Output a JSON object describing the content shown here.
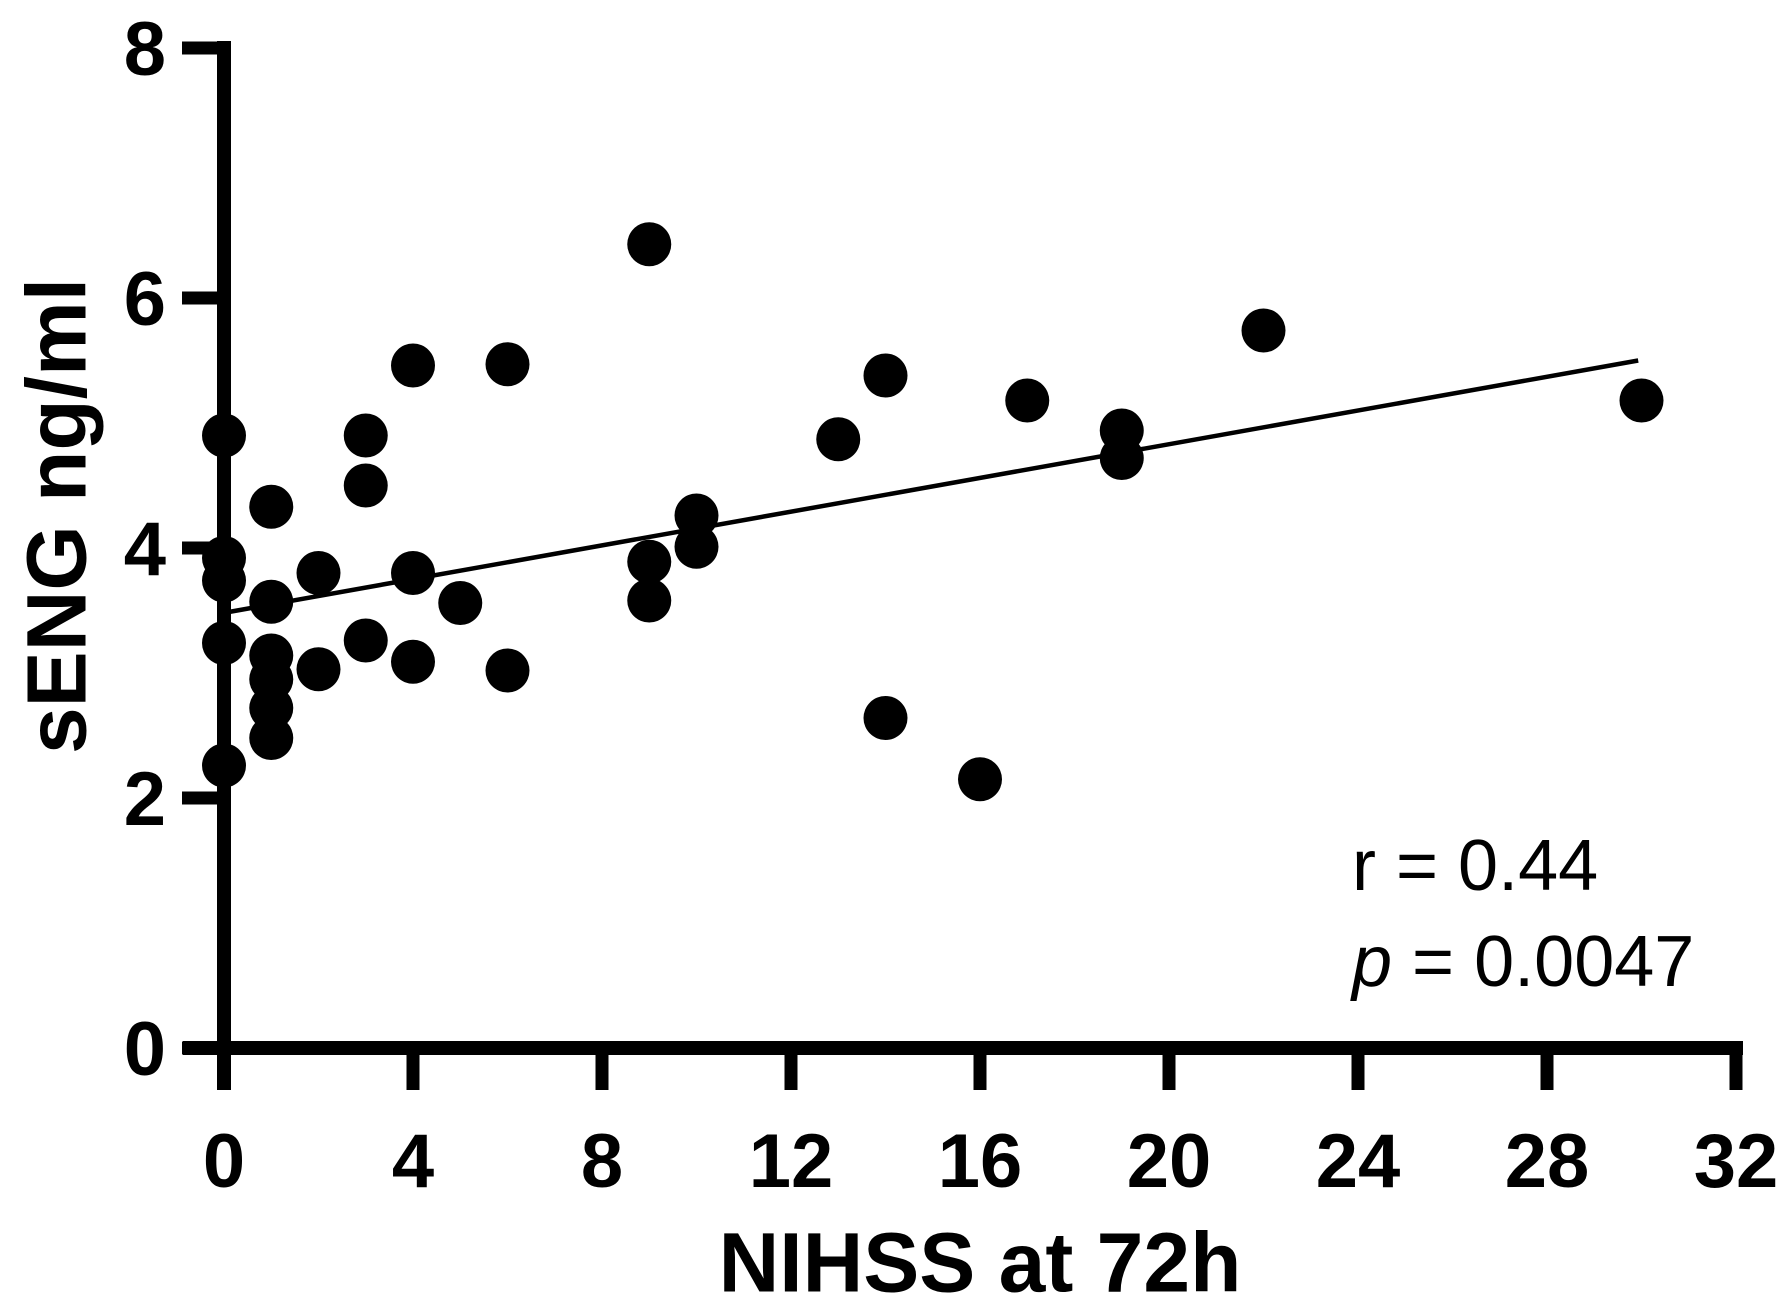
{
  "figure": {
    "annotation": {
      "r_text": "r = 0.44",
      "p_label": "p",
      "p_rest": " = 0.0047"
    }
  },
  "chart_data": {
    "type": "scatter",
    "title": "",
    "xlabel": "NIHSS at 72h",
    "ylabel": "sENG ng/ml",
    "xlim": [
      0,
      32
    ],
    "ylim": [
      0,
      8
    ],
    "x_ticks": [
      0,
      4,
      8,
      12,
      16,
      20,
      24,
      28,
      32
    ],
    "y_ticks": [
      0,
      2,
      4,
      6,
      8
    ],
    "grid": false,
    "legend": "none",
    "point_color": "#000000",
    "line_color": "#000000",
    "axis_color": "#000000",
    "correlation_r": "0.44",
    "p_value": "0.0047",
    "points": [
      [
        0,
        4.9
      ],
      [
        0,
        3.92
      ],
      [
        0,
        3.74
      ],
      [
        0,
        3.24
      ],
      [
        0,
        2.26
      ],
      [
        1,
        4.33
      ],
      [
        1,
        3.57
      ],
      [
        1,
        3.14
      ],
      [
        1,
        2.95
      ],
      [
        1,
        2.72
      ],
      [
        1,
        2.48
      ],
      [
        2,
        3.8
      ],
      [
        2,
        3.03
      ],
      [
        3,
        4.9
      ],
      [
        3,
        4.5
      ],
      [
        3,
        3.26
      ],
      [
        4,
        5.46
      ],
      [
        4,
        3.8
      ],
      [
        4,
        3.09
      ],
      [
        5,
        3.56
      ],
      [
        6,
        5.47
      ],
      [
        6,
        3.02
      ],
      [
        9,
        6.43
      ],
      [
        9,
        3.89
      ],
      [
        9,
        3.58
      ],
      [
        10,
        4.26
      ],
      [
        10,
        4.01
      ],
      [
        13,
        4.87
      ],
      [
        14,
        5.38
      ],
      [
        14,
        2.64
      ],
      [
        16,
        2.15
      ],
      [
        17,
        5.18
      ],
      [
        19,
        4.94
      ],
      [
        19,
        4.72
      ],
      [
        22,
        5.74
      ],
      [
        30,
        5.18
      ]
    ],
    "trend_line": {
      "x1": 0.13,
      "y1": 3.49,
      "x2": 29.93,
      "y2": 5.5
    }
  }
}
